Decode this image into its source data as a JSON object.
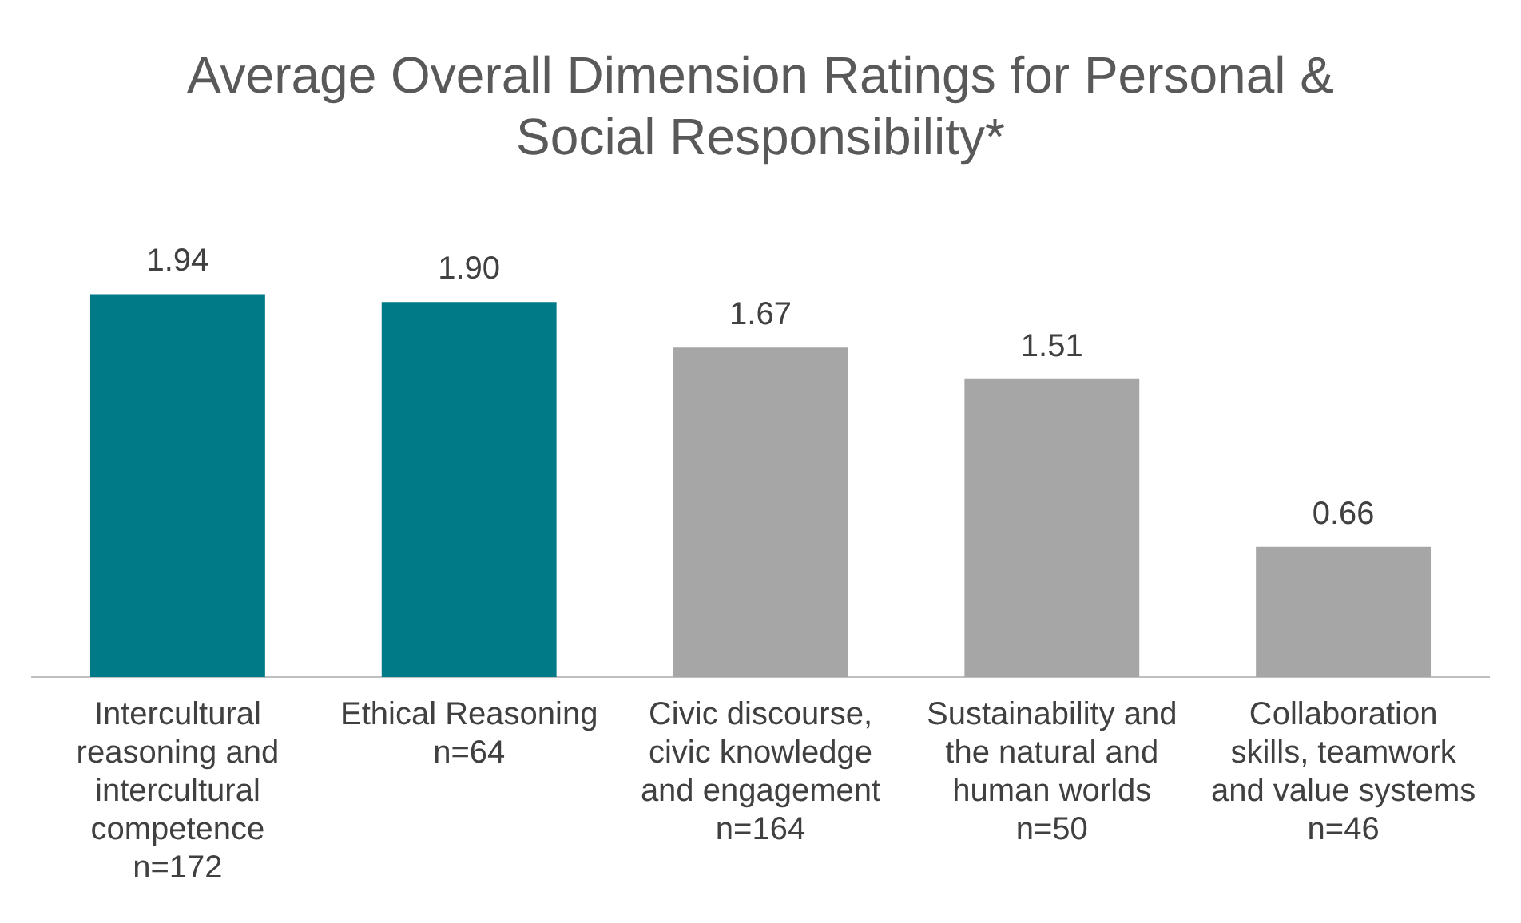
{
  "chart_data": {
    "type": "bar",
    "title": "Average Overall Dimension Ratings for Personal &\nSocial Responsibility*",
    "categories": [
      "Intercultural\nreasoning and\nintercultural\ncompetence\nn=172",
      "Ethical Reasoning\nn=64",
      "Civic discourse,\ncivic knowledge\nand engagement\nn=164",
      "Sustainability and\nthe natural and\nhuman worlds\nn=50",
      "Collaboration\nskills, teamwork\nand value systems\nn=46"
    ],
    "values": [
      1.94,
      1.9,
      1.67,
      1.51,
      0.66
    ],
    "colors": [
      "#007a87",
      "#007a87",
      "#a6a6a6",
      "#a6a6a6",
      "#a6a6a6"
    ],
    "value_labels": [
      "1.94",
      "1.90",
      "1.67",
      "1.51",
      "0.66"
    ],
    "grid": false,
    "legend": false
  }
}
